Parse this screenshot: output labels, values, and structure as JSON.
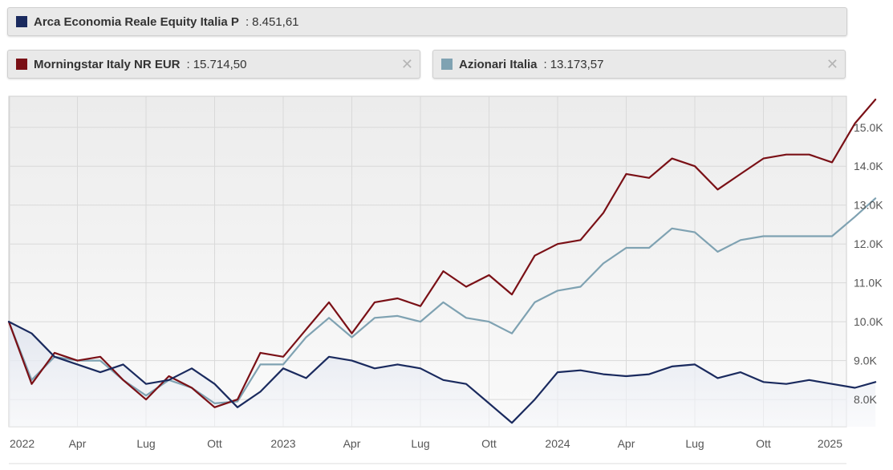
{
  "legend": [
    {
      "name": "Arca Economia Reale Equity Italia P",
      "separator": ":",
      "value": "8.451,61",
      "color": "#1a2a5e",
      "closable": false
    },
    {
      "name": "Morningstar Italy NR EUR",
      "separator": ":",
      "value": "15.714,50",
      "color": "#7a1016",
      "closable": true
    },
    {
      "name": "Azionari Italia",
      "separator": ":",
      "value": "13.173,57",
      "color": "#7fa2b2",
      "closable": true
    }
  ],
  "close_glyph": "✕",
  "chart_data": {
    "type": "line",
    "x_tick_labels": [
      "2022",
      "Apr",
      "Lug",
      "Ott",
      "2023",
      "Apr",
      "Lug",
      "Ott",
      "2024",
      "Apr",
      "Lug",
      "Ott",
      "2025"
    ],
    "y_tick_labels": [
      "8.0K",
      "9.0K",
      "10.0K",
      "11.0K",
      "12.0K",
      "13.0K",
      "14.0K",
      "15.0K"
    ],
    "y_ticks": [
      8000,
      9000,
      10000,
      11000,
      12000,
      13000,
      14000,
      15000
    ],
    "ylim": [
      7300,
      15800
    ],
    "grid": true,
    "x_months": [
      0,
      1,
      2,
      3,
      4,
      5,
      6,
      7,
      8,
      9,
      10,
      11,
      12,
      13,
      14,
      15,
      16,
      17,
      18,
      19,
      20,
      21,
      22,
      23,
      24,
      25,
      26,
      27,
      28,
      29,
      30,
      31,
      32,
      33,
      34,
      35,
      36,
      37,
      37.9
    ],
    "series": [
      {
        "name": "Arca Economia Reale Equity Italia P",
        "color": "#1a2a5e",
        "values": [
          10000,
          9700,
          9100,
          8900,
          8700,
          8900,
          8400,
          8500,
          8800,
          8400,
          7800,
          8200,
          8800,
          8550,
          9100,
          9000,
          8800,
          8900,
          8800,
          8500,
          8400,
          7900,
          7400,
          8000,
          8700,
          8750,
          8650,
          8600,
          8650,
          8850,
          8900,
          8550,
          8700,
          8450,
          8400,
          8500,
          8400,
          8300,
          8450
        ]
      },
      {
        "name": "Morningstar Italy NR EUR",
        "color": "#7a1016",
        "values": [
          10000,
          8400,
          9200,
          9000,
          9100,
          8500,
          8000,
          8600,
          8300,
          7800,
          8000,
          9200,
          9100,
          9800,
          10500,
          9700,
          10500,
          10600,
          10400,
          11300,
          10900,
          11200,
          10700,
          11700,
          12000,
          12100,
          12800,
          13800,
          13700,
          14200,
          14000,
          13400,
          13800,
          14200,
          14300,
          14300,
          14100,
          15100,
          15714.5
        ]
      },
      {
        "name": "Azionari Italia",
        "color": "#7fa2b2",
        "values": [
          10000,
          8500,
          9100,
          9000,
          9000,
          8500,
          8100,
          8500,
          8300,
          7900,
          7950,
          8900,
          8900,
          9600,
          10100,
          9600,
          10100,
          10150,
          10000,
          10500,
          10100,
          10000,
          9700,
          10500,
          10800,
          10900,
          11500,
          11900,
          11900,
          12400,
          12300,
          11800,
          12100,
          12200,
          12200,
          12200,
          12200,
          12700,
          13173.57
        ]
      }
    ]
  }
}
